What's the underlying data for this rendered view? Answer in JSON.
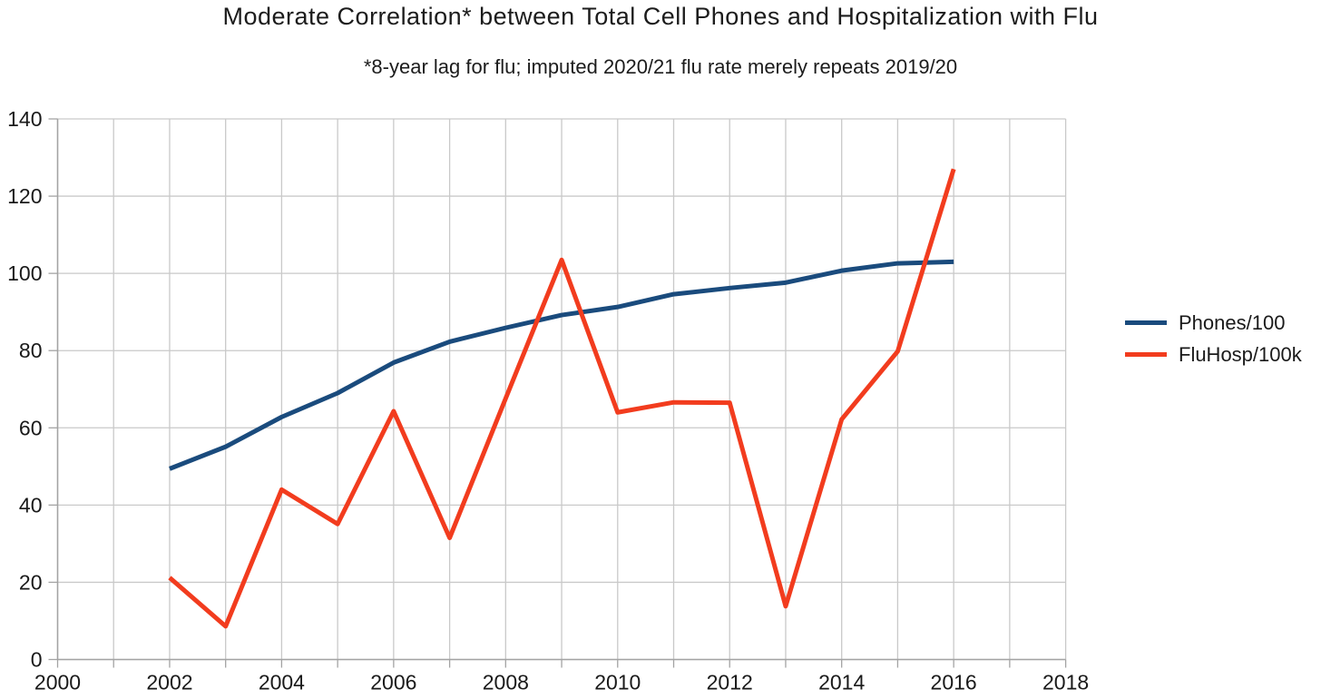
{
  "chart_data": {
    "type": "line",
    "title": "Moderate Correlation* between Total Cell Phones and Hospitalization with Flu",
    "subtitle": "*8-year lag for flu; imputed 2020/21 flu rate merely repeats 2019/20",
    "x": [
      2002,
      2003,
      2004,
      2005,
      2006,
      2007,
      2008,
      2009,
      2010,
      2011,
      2012,
      2013,
      2014,
      2015,
      2016
    ],
    "series": [
      {
        "name": "Phones/100",
        "color": "#1a4b7d",
        "values": [
          49.4,
          55.1,
          62.8,
          69.0,
          76.9,
          82.3,
          85.9,
          89.2,
          91.3,
          94.6,
          96.2,
          97.6,
          100.7,
          102.6,
          103.0
        ]
      },
      {
        "name": "FluHosp/100k",
        "color": "#f23c1e",
        "values": [
          21.2,
          8.6,
          44.0,
          35.1,
          64.3,
          31.5,
          67.6,
          103.5,
          64.0,
          66.6,
          66.5,
          13.8,
          62.2,
          79.8,
          127.0
        ]
      }
    ],
    "xlim": [
      2000,
      2018
    ],
    "ylim": [
      0,
      140
    ],
    "x_grid_step": 1,
    "x_labeled_ticks": [
      2000,
      2002,
      2004,
      2006,
      2008,
      2010,
      2012,
      2014,
      2016,
      2018
    ],
    "y_ticks": [
      0,
      20,
      40,
      60,
      80,
      100,
      120,
      140
    ],
    "grid": true,
    "legend_position": "right",
    "colors": {
      "grid": "#c9c9c9",
      "axis": "#a3a3a3",
      "tick_text": "#1a1a1a"
    }
  }
}
